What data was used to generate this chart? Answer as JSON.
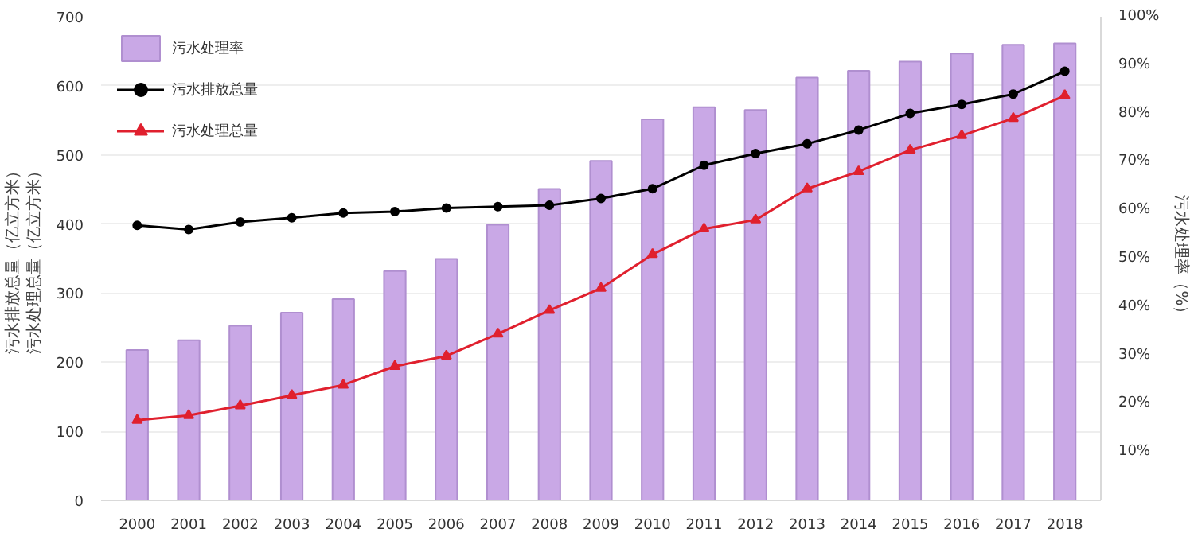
{
  "chart_data": {
    "type": "bar",
    "categories": [
      "2000",
      "2001",
      "2002",
      "2003",
      "2004",
      "2005",
      "2006",
      "2007",
      "2008",
      "2009",
      "2010",
      "2011",
      "2012",
      "2013",
      "2014",
      "2015",
      "2016",
      "2017",
      "2018"
    ],
    "ylabel": [
      "污水排放总量（亿立方米）",
      "污水处理总量（亿立方米）"
    ],
    "y2label": "污水处理率（%）",
    "ylim": [
      0,
      700
    ],
    "yticks": [
      0,
      100,
      200,
      300,
      400,
      500,
      600,
      700
    ],
    "y2lim": [
      0,
      100
    ],
    "y2ticks": [
      {
        "value": 10,
        "label": "10%"
      },
      {
        "value": 20,
        "label": "20%"
      },
      {
        "value": 30,
        "label": "30%"
      },
      {
        "value": 40,
        "label": "40%"
      },
      {
        "value": 50,
        "label": "50%"
      },
      {
        "value": 60,
        "label": "60%"
      },
      {
        "value": 70,
        "label": "70%"
      },
      {
        "value": 80,
        "label": "80%"
      },
      {
        "value": 90,
        "label": "90%"
      },
      {
        "value": 100,
        "label": "100%"
      }
    ],
    "grid": "y",
    "legend": "top left",
    "series": [
      {
        "name": "污水处理率",
        "axis": "y2",
        "color": "#c9a8e6",
        "values": [
          31.1,
          33.1,
          36.1,
          38.8,
          41.6,
          47.4,
          49.9,
          57.0,
          64.4,
          70.2,
          78.8,
          81.3,
          80.7,
          87.4,
          88.8,
          90.7,
          92.4,
          94.2,
          94.5
        ]
      },
      {
        "name": "污水排放总量",
        "type": "line",
        "marker": "circle",
        "color": "#000000",
        "values": [
          398,
          392,
          403,
          409,
          416,
          418,
          423,
          425,
          427,
          437,
          451,
          485,
          502,
          516,
          536,
          560,
          573,
          588,
          621
        ]
      },
      {
        "name": "污水处理总量",
        "type": "line",
        "marker": "triangle",
        "color": "#e0202e",
        "values": [
          116,
          123,
          137,
          152,
          167,
          194,
          209,
          241,
          275,
          307,
          356,
          393,
          406,
          451,
          476,
          507,
          528,
          553,
          586
        ]
      }
    ]
  }
}
